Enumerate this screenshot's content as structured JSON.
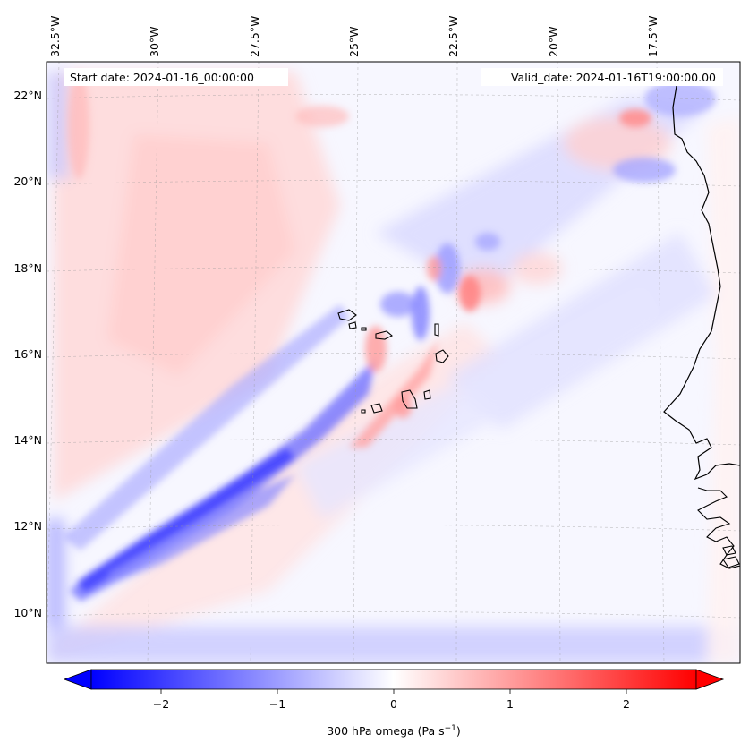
{
  "map": {
    "type": "contourf-map",
    "projection": "lambert-conformal",
    "variable_label": "300 hPa omega (Pa s",
    "variable_unit_sup": "−1",
    "variable_label_close": ")",
    "start_date_text": "Start date: 2024-01-16_00:00:00",
    "valid_date_text": "Valid_date: 2024-01-16T19:00:00.00",
    "lon_ticks": [
      "32.5°W",
      "30°W",
      "27.5°W",
      "25°W",
      "22.5°W",
      "20°W",
      "17.5°W"
    ],
    "lon_values": [
      -32.5,
      -30,
      -27.5,
      -25,
      -22.5,
      -20,
      -17.5
    ],
    "lat_ticks": [
      "22°N",
      "20°N",
      "18°N",
      "16°N",
      "14°N",
      "12°N",
      "10°N"
    ],
    "lat_values": [
      22,
      20,
      18,
      16,
      14,
      12,
      10
    ],
    "gridlines": true,
    "colormap": "bwr",
    "colors": {
      "negative": "#0000ff",
      "zero": "#ffffff",
      "positive": "#ff0000",
      "coast": "#000000"
    }
  },
  "colorbar": {
    "ticks": [
      "−2",
      "−1",
      "0",
      "1",
      "2"
    ],
    "tick_values": [
      -2,
      -1,
      0,
      1,
      2
    ],
    "range": [
      -2.6,
      2.6
    ],
    "extend": "both"
  }
}
